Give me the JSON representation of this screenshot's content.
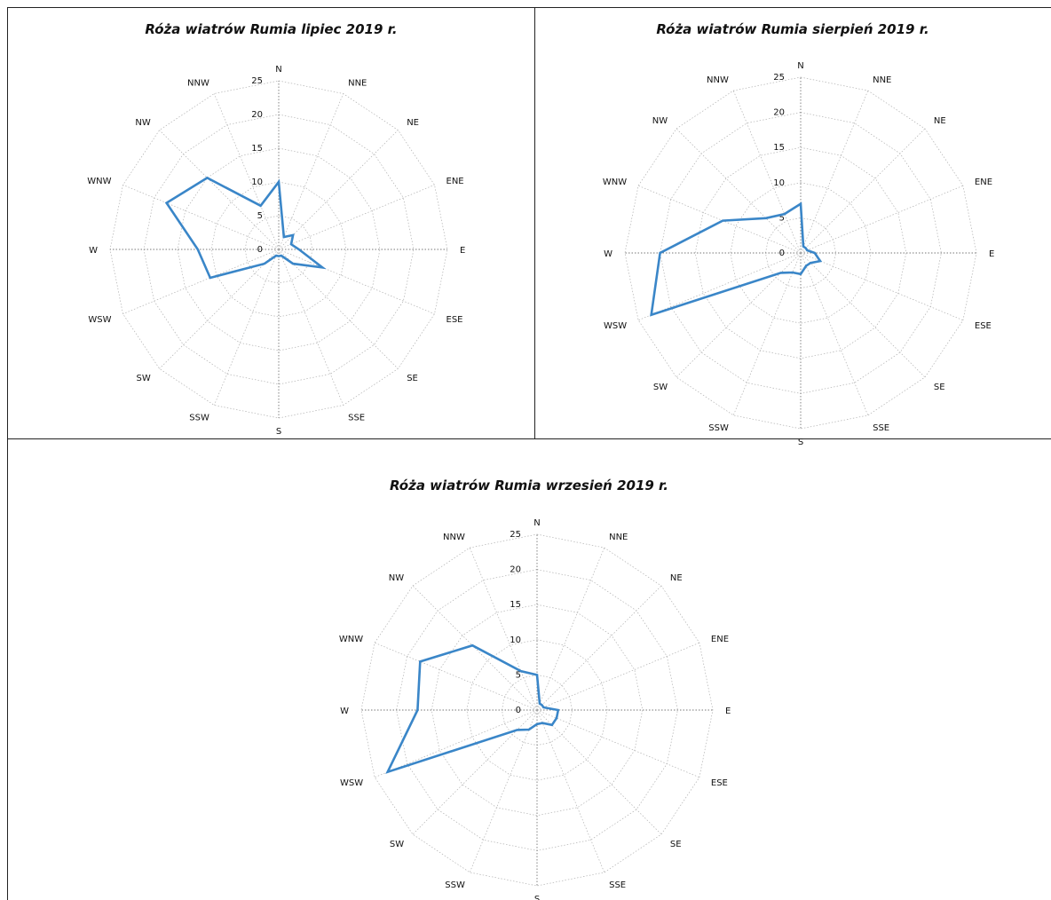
{
  "directions": [
    "N",
    "NNE",
    "NE",
    "ENE",
    "E",
    "ESE",
    "SE",
    "SSE",
    "S",
    "SSW",
    "SW",
    "WSW",
    "W",
    "WNW",
    "NW",
    "NNW"
  ],
  "ticks": [
    "0",
    "5",
    "10",
    "15",
    "20",
    "25"
  ],
  "series_color": "#3a86c8",
  "grid_color": "#b0b0b0",
  "chart_data": [
    {
      "type": "radar",
      "title": "Róża wiatrów Rumia lipiec 2019 r.",
      "categories": [
        "N",
        "NNE",
        "NE",
        "ENE",
        "E",
        "ESE",
        "SE",
        "SSE",
        "S",
        "SSW",
        "SW",
        "WSW",
        "W",
        "WNW",
        "NW",
        "NNW"
      ],
      "series": [
        {
          "values": [
            10,
            2,
            3,
            2,
            3,
            7,
            3,
            1,
            1,
            1,
            3,
            11,
            12,
            18,
            15,
            7
          ]
        }
      ],
      "ylim": [
        0,
        25
      ],
      "ticks": [
        0,
        5,
        10,
        15,
        20,
        25
      ],
      "grid": true
    },
    {
      "type": "radar",
      "title": "Róża wiatrów Rumia sierpień 2019 r.",
      "categories": [
        "N",
        "NNE",
        "NE",
        "ENE",
        "E",
        "ESE",
        "SE",
        "SSE",
        "S",
        "SSW",
        "SW",
        "WSW",
        "W",
        "WNW",
        "NW",
        "NNW"
      ],
      "series": [
        {
          "values": [
            7,
            1,
            1,
            1,
            2,
            3,
            2,
            2,
            3,
            3,
            4,
            23,
            20,
            12,
            7,
            6
          ]
        }
      ],
      "ylim": [
        0,
        25
      ],
      "ticks": [
        0,
        5,
        10,
        15,
        20,
        25
      ],
      "grid": true
    },
    {
      "type": "radar",
      "title": "Róża wiatrów Rumia wrzesień 2019 r.",
      "categories": [
        "N",
        "NNE",
        "NE",
        "ENE",
        "E",
        "ESE",
        "SE",
        "SSE",
        "S",
        "SSW",
        "SW",
        "WSW",
        "W",
        "WNW",
        "NW",
        "NNW"
      ],
      "series": [
        {
          "values": [
            5,
            1,
            1,
            1,
            3,
            3,
            3,
            2,
            2,
            3,
            4,
            23,
            17,
            18,
            13,
            6
          ]
        }
      ],
      "ylim": [
        0,
        25
      ],
      "ticks": [
        0,
        5,
        10,
        15,
        20,
        25
      ],
      "grid": true
    }
  ]
}
